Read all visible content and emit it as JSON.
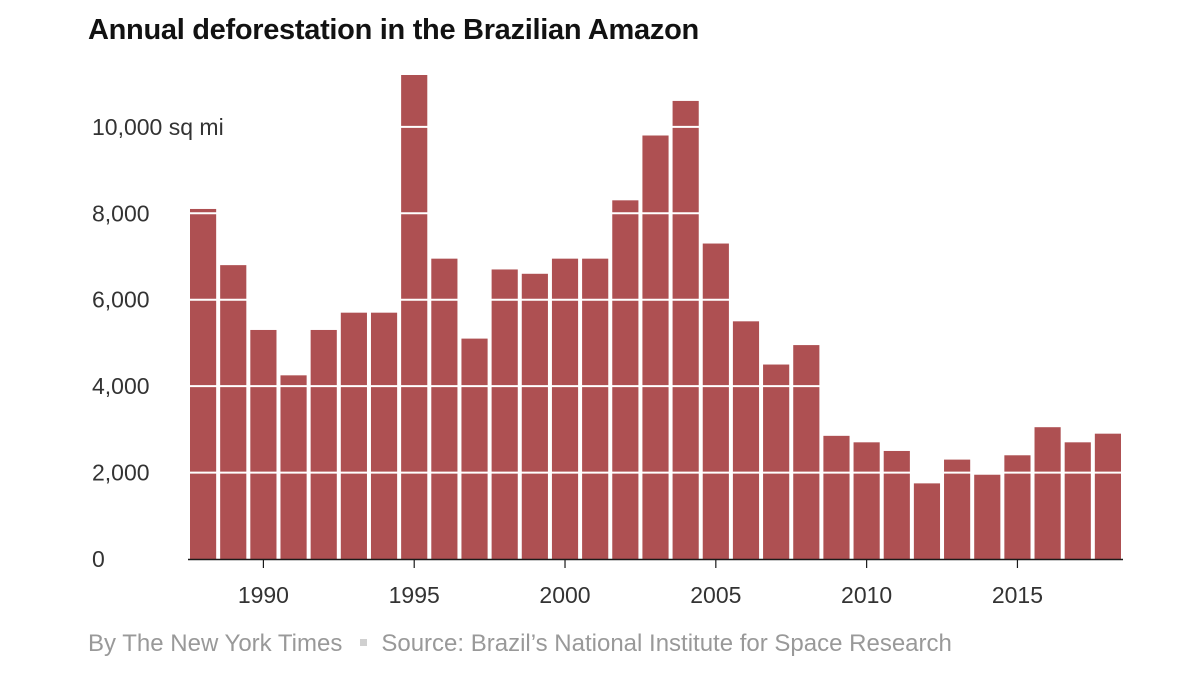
{
  "header": {
    "title": "Annual deforestation in the Brazilian Amazon"
  },
  "footer": {
    "byline": "By The New York Times",
    "source": "Source: Brazil’s National Institute for Space Research"
  },
  "colors": {
    "bar": "#ae5052",
    "axis": "#1a1a1a",
    "text": "#333333",
    "muted": "#999999"
  },
  "chart_data": {
    "type": "bar",
    "title": "Annual deforestation in the Brazilian Amazon",
    "xlabel": "",
    "ylabel": "",
    "unit": "sq mi",
    "categories": [
      1988,
      1989,
      1990,
      1991,
      1992,
      1993,
      1994,
      1995,
      1996,
      1997,
      1998,
      1999,
      2000,
      2001,
      2002,
      2003,
      2004,
      2005,
      2006,
      2007,
      2008,
      2009,
      2010,
      2011,
      2012,
      2013,
      2014,
      2015,
      2016,
      2017,
      2018
    ],
    "values": [
      8100,
      6800,
      5300,
      4250,
      5300,
      5700,
      5700,
      11200,
      6950,
      5100,
      6700,
      6600,
      6950,
      6950,
      8300,
      9800,
      10600,
      7300,
      5500,
      4500,
      4950,
      2850,
      2700,
      2500,
      1750,
      2300,
      1950,
      2400,
      3050,
      2700,
      2900
    ],
    "ylim": [
      0,
      11200
    ],
    "y_ticks": [
      {
        "value": 0,
        "label": "0"
      },
      {
        "value": 2000,
        "label": "2,000"
      },
      {
        "value": 4000,
        "label": "4,000"
      },
      {
        "value": 6000,
        "label": "6,000"
      },
      {
        "value": 8000,
        "label": "8,000"
      },
      {
        "value": 10000,
        "label": "10,000 sq mi"
      }
    ],
    "x_ticks": [
      {
        "value": 1990,
        "label": "1990"
      },
      {
        "value": 1995,
        "label": "1995"
      },
      {
        "value": 2000,
        "label": "2000"
      },
      {
        "value": 2005,
        "label": "2005"
      },
      {
        "value": 2010,
        "label": "2010"
      },
      {
        "value": 2015,
        "label": "2015"
      }
    ],
    "grid": "white lines over bars"
  }
}
